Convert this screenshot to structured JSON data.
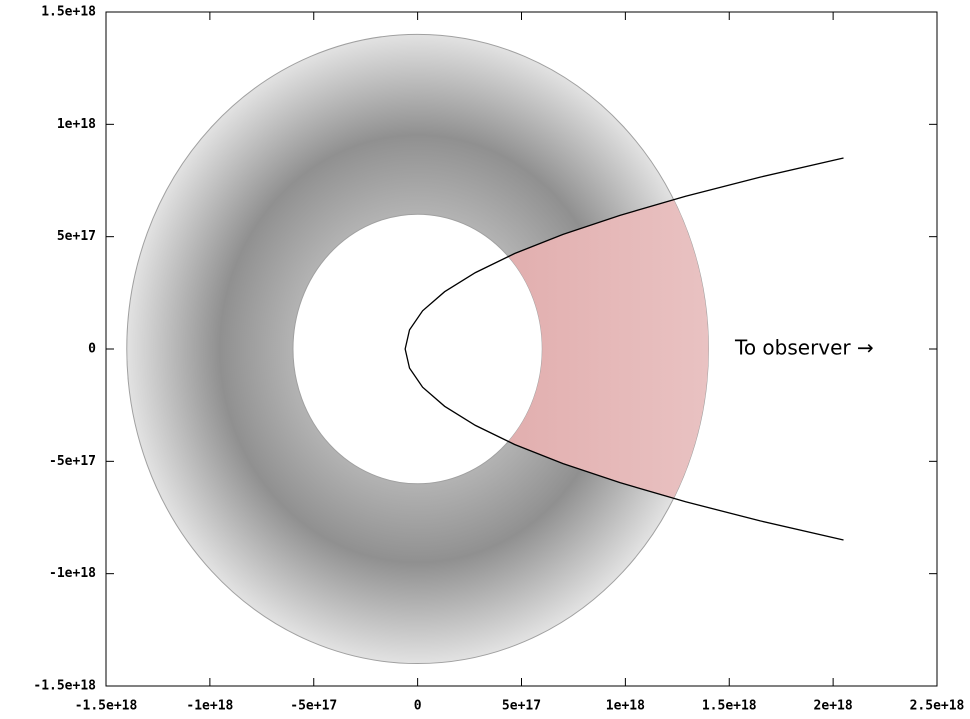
{
  "chart_data": {
    "type": "disk",
    "annotation": "To observer →",
    "xlim": [
      -1.5e+18,
      2.5e+18
    ],
    "ylim": [
      -1.5e+18,
      1.5e+18
    ],
    "xticks": [
      {
        "value": -1.5e+18,
        "label": "-1.5e+18"
      },
      {
        "value": -1e+18,
        "label": "-1e+18"
      },
      {
        "value": -5e+17,
        "label": "-5e+17"
      },
      0,
      {
        "value": 5e+17,
        "label": "5e+17"
      },
      {
        "value": 1e+18,
        "label": "1e+18"
      },
      {
        "value": 1.5e+18,
        "label": "1.5e+18"
      },
      {
        "value": 2e+18,
        "label": "2e+18"
      },
      {
        "value": 2.5e+18,
        "label": "2.5e+18"
      }
    ],
    "yticks": [
      {
        "value": 1.5e+18,
        "label": "1.5e+18"
      },
      {
        "value": 1e+18,
        "label": "1e+18"
      },
      {
        "value": 5e+17,
        "label": "5e+17"
      },
      0,
      {
        "value": -5e+17,
        "label": "-5e+17"
      },
      {
        "value": -1e+18,
        "label": "-1e+18"
      },
      {
        "value": -1.5e+18,
        "label": "-1.5e+18"
      }
    ],
    "outer_radius": 1.4e+18,
    "inner_radius": 6e+17,
    "disk_color": "#909090",
    "highlight_color": "#d48a8a",
    "curve": {
      "color": "#000000",
      "x": [
        2.05e+18,
        1.649e+18,
        1.29e+18,
        9.74e+17,
        7e+17,
        4.67e+17,
        2.78e+17,
        1.3e+17,
        2.4e+16,
        -3.9e+16,
        -6e+16,
        -3.9e+16,
        2.4e+16,
        1.3e+17,
        2.78e+17,
        4.67e+17,
        7e+17,
        9.74e+17,
        1.29e+18,
        1.649e+18,
        2.05e+18
      ],
      "y": [
        -8.5e+17,
        -7.65e+17,
        -6.8e+17,
        -5.95e+17,
        -5.1e+17,
        -4.25e+17,
        -3.4e+17,
        -2.55e+17,
        -1.7e+17,
        -8.5e+16,
        0,
        8.5e+16,
        1.7e+17,
        2.55e+17,
        3.4e+17,
        4.25e+17,
        5.1e+17,
        5.95e+17,
        6.8e+17,
        7.65e+17,
        8.5e+17
      ]
    }
  }
}
